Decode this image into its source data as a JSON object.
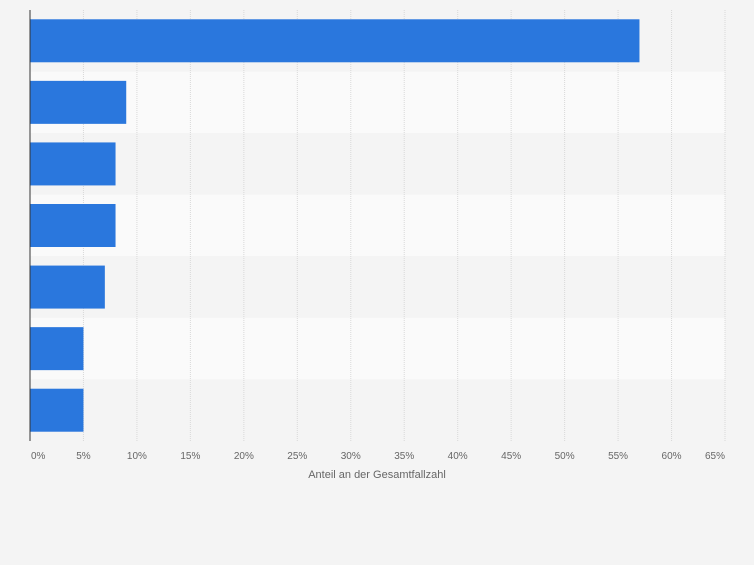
{
  "chart_data": {
    "type": "bar",
    "orientation": "horizontal",
    "categories": [
      "",
      "",
      "",
      "",
      "",
      "",
      ""
    ],
    "values": [
      57,
      9,
      8,
      8,
      7,
      5,
      5
    ],
    "xlabel": "Anteil an der Gesamtfallzahl",
    "xlim": [
      0,
      65
    ],
    "xticks": [
      "0%",
      "5%",
      "10%",
      "15%",
      "20%",
      "25%",
      "30%",
      "35%",
      "40%",
      "45%",
      "50%",
      "55%",
      "60%",
      "65%"
    ],
    "grid": true,
    "legend": "none",
    "bar_color": "#2a77dd",
    "band_colors": [
      "#f4f4f4",
      "#fafafa"
    ],
    "gridline_color": "#d9d9d9",
    "axis_color": "#333333",
    "tick_label_color": "#666666"
  }
}
